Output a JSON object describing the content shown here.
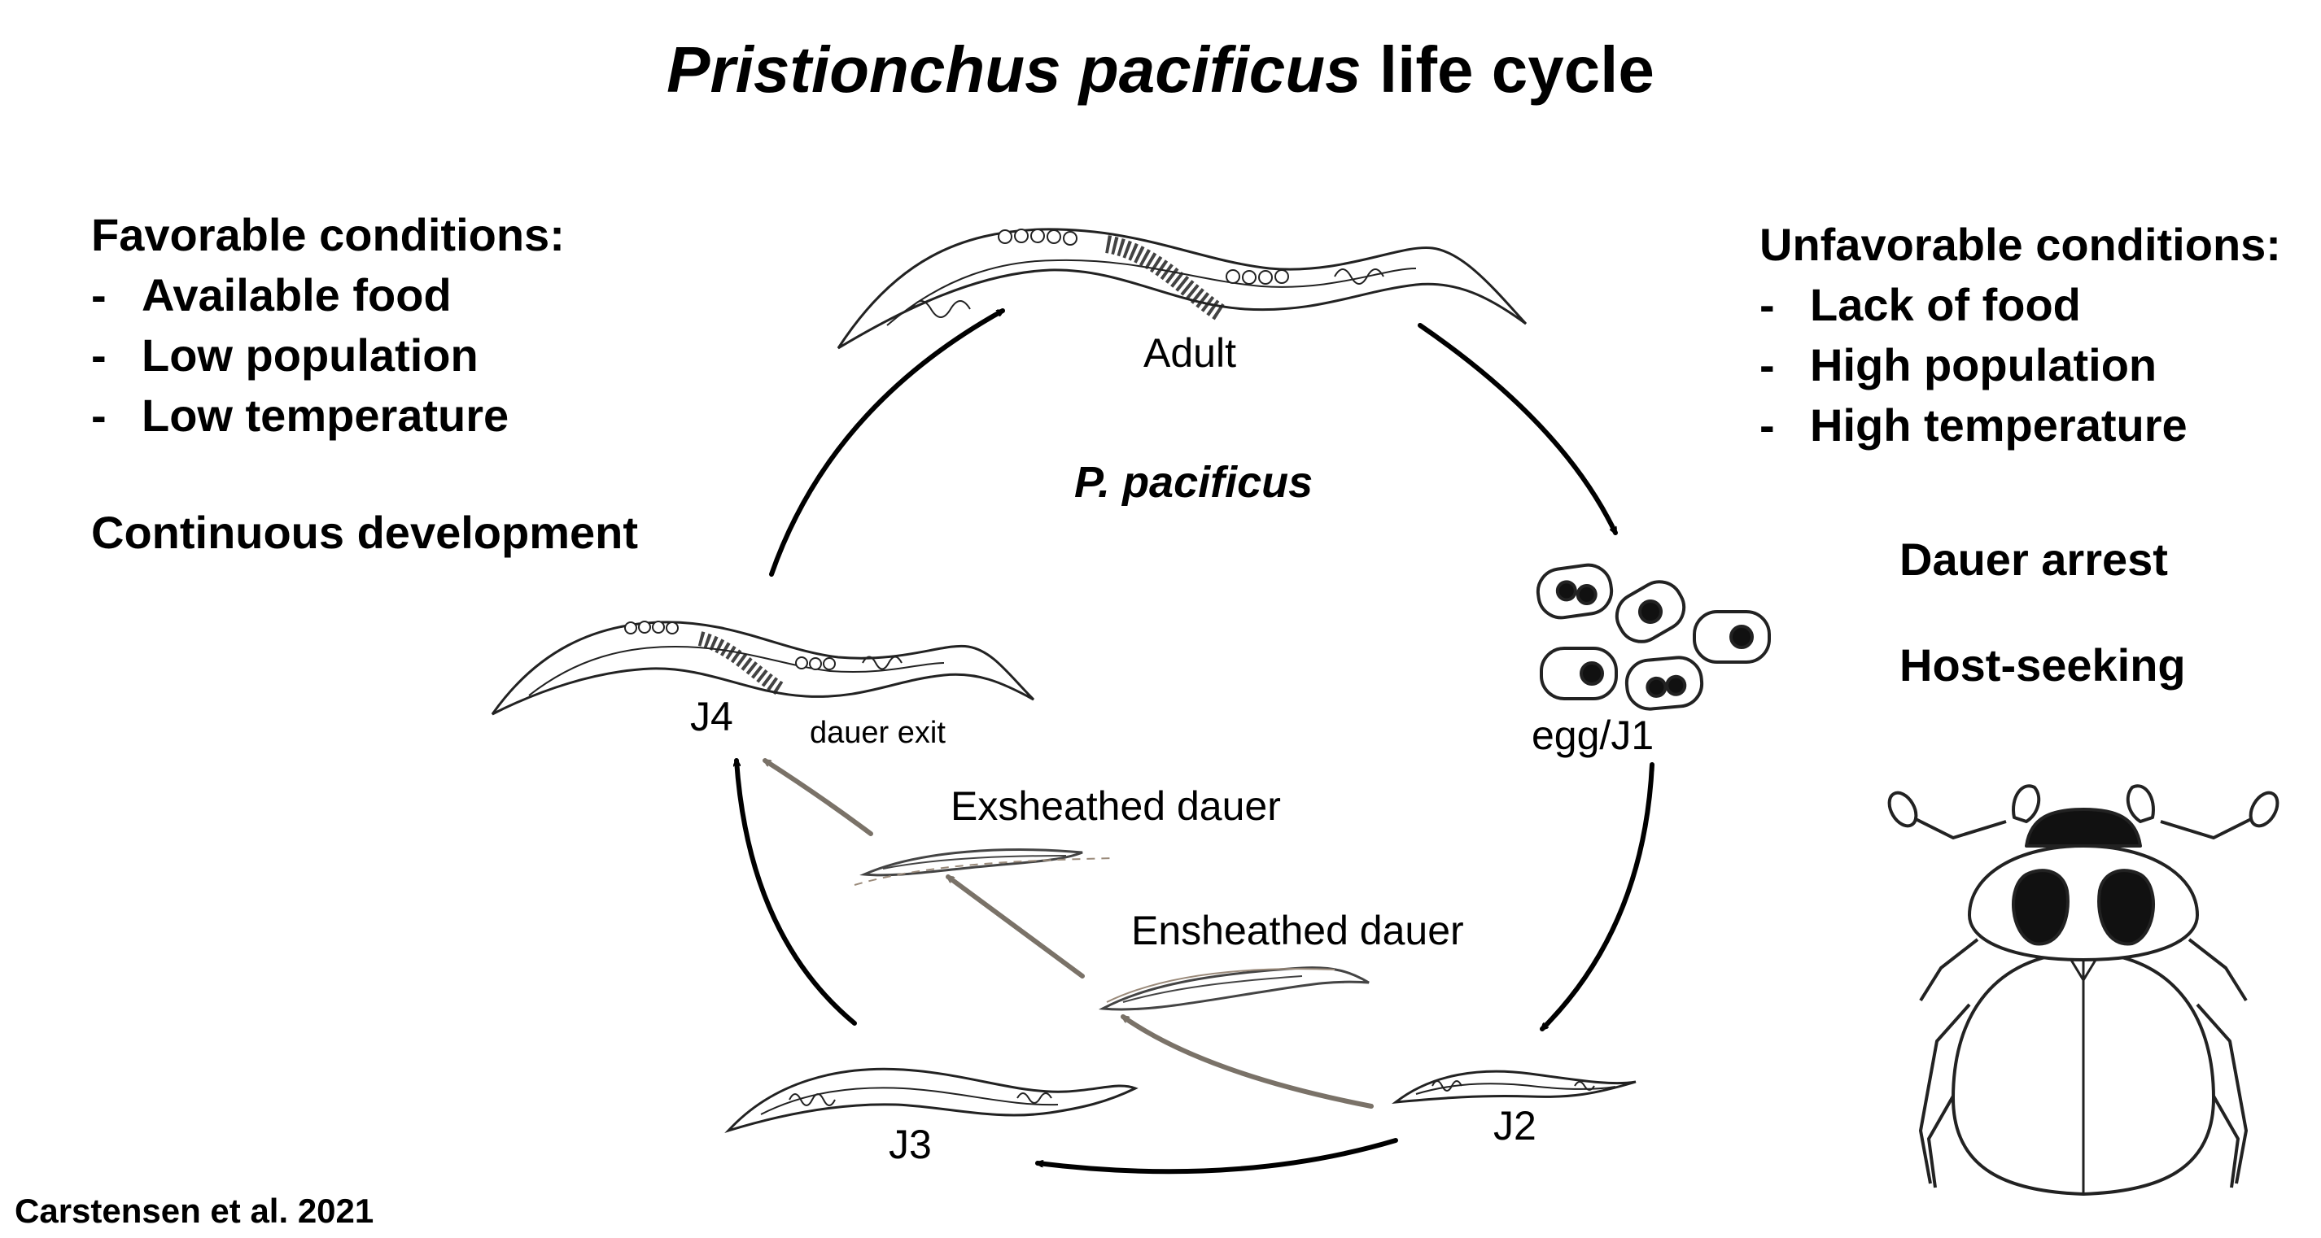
{
  "title": {
    "italic": "Pristionchus pacificus",
    "rest": " life cycle"
  },
  "favorable": {
    "heading": "Favorable conditions:",
    "items": [
      "Available food",
      "Low population",
      "Low temperature"
    ],
    "outcome": "Continuous development"
  },
  "unfavorable": {
    "heading": "Unfavorable conditions:",
    "items": [
      "Lack of food",
      "High population",
      "High temperature"
    ],
    "outcome1": "Dauer arrest",
    "outcome2": "Host-seeking"
  },
  "center_label": "P. pacificus",
  "stages": {
    "adult": "Adult",
    "egg": "egg/J1",
    "j2": "J2",
    "j3": "J3",
    "j4": "J4",
    "ensheathed": "Ensheathed dauer",
    "exsheathed": "Exsheathed dauer",
    "dauer_exit": "dauer exit"
  },
  "citation": "Carstensen et al. 2021",
  "colors": {
    "main_arrow": "#000000",
    "dauer_arrow": "#7a7268"
  }
}
